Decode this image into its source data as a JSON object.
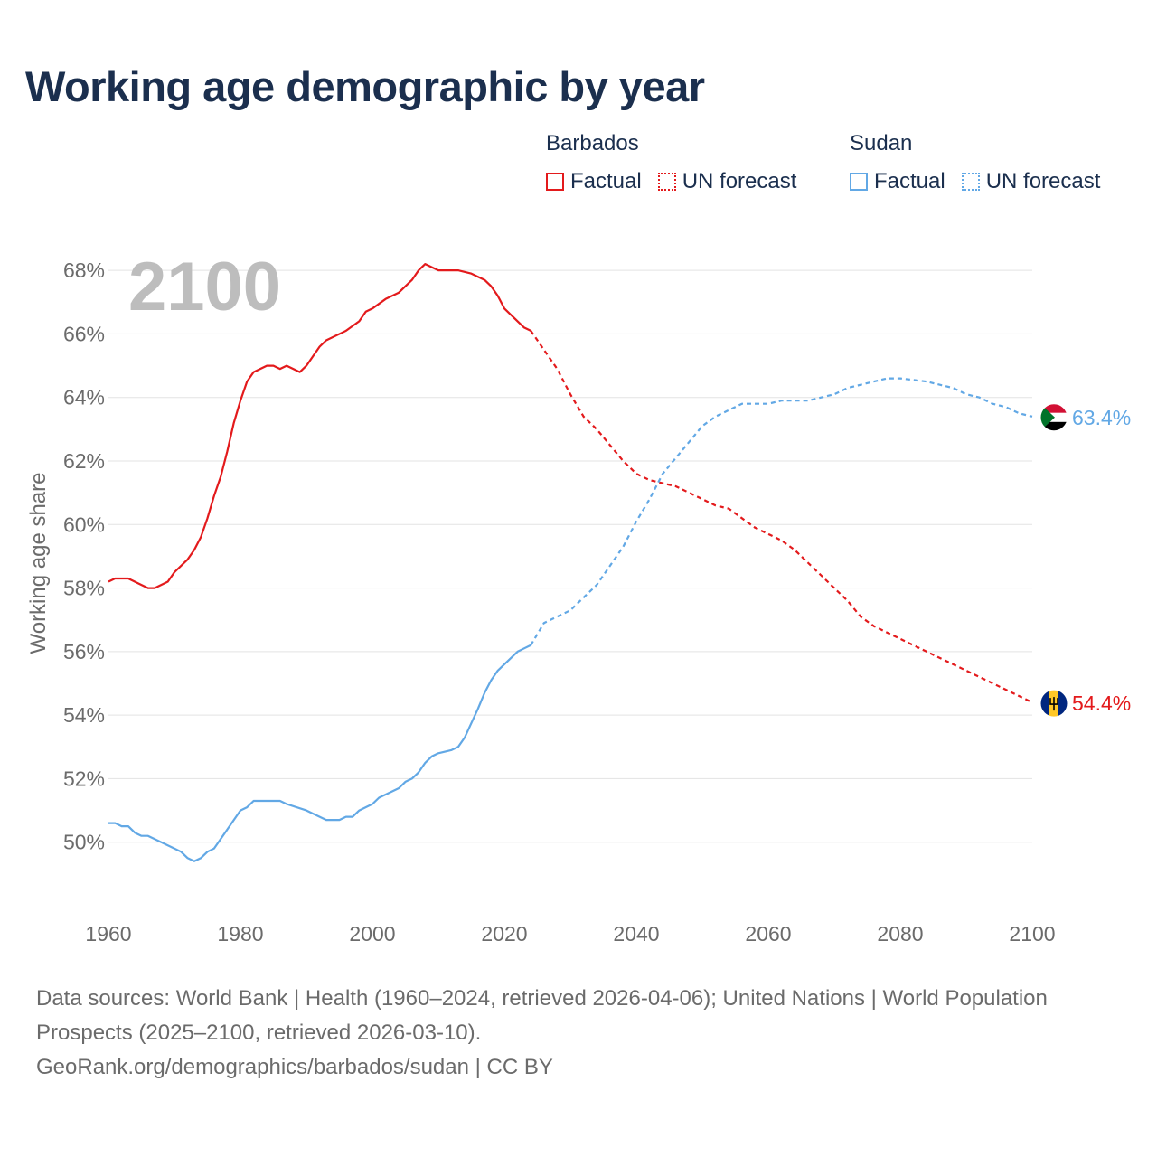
{
  "title": "Working age demographic by year",
  "legend": {
    "groups": [
      {
        "name": "Barbados",
        "factual": "Factual",
        "forecast": "UN forecast",
        "color": "#e31a1c"
      },
      {
        "name": "Sudan",
        "factual": "Factual",
        "forecast": "UN forecast",
        "color": "#62a8e5"
      }
    ]
  },
  "year_label": "2100",
  "source": {
    "line1": "Data sources: World Bank | Health (1960–2024, retrieved 2026-04-06); United Nations | World Population Prospects (2025–2100, retrieved 2026-03-10).",
    "line2": "GeoRank.org/demographics/barbados/sudan | CC BY"
  },
  "chart_data": {
    "type": "line",
    "title": "Working age demographic by year",
    "xlabel": "",
    "ylabel": "Working age share",
    "xlim": [
      1960,
      2100
    ],
    "ylim": [
      48,
      69
    ],
    "x_ticks": [
      1960,
      1980,
      2000,
      2020,
      2040,
      2060,
      2080,
      2100
    ],
    "x_tick_labels": [
      "1960",
      "1980",
      "2000",
      "2020",
      "2040",
      "2060",
      "2080",
      "2100"
    ],
    "y_ticks": [
      50,
      52,
      54,
      56,
      58,
      60,
      62,
      64,
      66,
      68
    ],
    "y_tick_labels": [
      "50%",
      "52%",
      "54%",
      "56%",
      "58%",
      "60%",
      "62%",
      "64%",
      "66%",
      "68%"
    ],
    "grid": true,
    "series": [
      {
        "name": "Barbados",
        "color": "#e31a1c",
        "end_label": "54.4%",
        "flag": "barbados-flag",
        "factual": {
          "x": [
            1960,
            1961,
            1963,
            1965,
            1966,
            1967,
            1969,
            1970,
            1972,
            1973,
            1974,
            1975,
            1976,
            1977,
            1978,
            1979,
            1980,
            1981,
            1982,
            1984,
            1985,
            1986,
            1987,
            1989,
            1990,
            1992,
            1993,
            1996,
            1998,
            1999,
            2000,
            2002,
            2004,
            2005,
            2006,
            2007,
            2008,
            2010,
            2013,
            2015,
            2016,
            2017,
            2018,
            2019,
            2020,
            2022,
            2023,
            2024
          ],
          "y": [
            58.2,
            58.3,
            58.3,
            58.1,
            58.0,
            58.0,
            58.2,
            58.5,
            58.9,
            59.2,
            59.6,
            60.2,
            60.9,
            61.5,
            62.3,
            63.2,
            63.9,
            64.5,
            64.8,
            65.0,
            65.0,
            64.9,
            65.0,
            64.8,
            65.0,
            65.6,
            65.8,
            66.1,
            66.4,
            66.7,
            66.8,
            67.1,
            67.3,
            67.5,
            67.7,
            68.0,
            68.2,
            68.0,
            68.0,
            67.9,
            67.8,
            67.7,
            67.5,
            67.2,
            66.8,
            66.4,
            66.2,
            66.1
          ]
        },
        "forecast": {
          "x": [
            2024,
            2026,
            2028,
            2030,
            2032,
            2034,
            2036,
            2038,
            2040,
            2042,
            2044,
            2046,
            2048,
            2050,
            2052,
            2054,
            2056,
            2058,
            2060,
            2062,
            2064,
            2066,
            2068,
            2070,
            2072,
            2074,
            2076,
            2080,
            2084,
            2088,
            2092,
            2096,
            2100
          ],
          "y": [
            66.1,
            65.5,
            64.9,
            64.1,
            63.4,
            63.0,
            62.5,
            62.0,
            61.6,
            61.4,
            61.3,
            61.2,
            61.0,
            60.8,
            60.6,
            60.5,
            60.2,
            59.9,
            59.7,
            59.5,
            59.2,
            58.8,
            58.4,
            58.0,
            57.6,
            57.1,
            56.8,
            56.4,
            56.0,
            55.6,
            55.2,
            54.8,
            54.4
          ]
        }
      },
      {
        "name": "Sudan",
        "color": "#62a8e5",
        "end_label": "63.4%",
        "flag": "sudan-flag",
        "factual": {
          "x": [
            1960,
            1961,
            1962,
            1963,
            1964,
            1965,
            1966,
            1967,
            1968,
            1970,
            1971,
            1972,
            1973,
            1974,
            1975,
            1976,
            1977,
            1978,
            1980,
            1981,
            1982,
            1984,
            1986,
            1987,
            1990,
            1992,
            1993,
            1994,
            1995,
            1996,
            1997,
            1998,
            2000,
            2001,
            2002,
            2003,
            2004,
            2005,
            2006,
            2007,
            2008,
            2009,
            2010,
            2012,
            2013,
            2014,
            2016,
            2017,
            2018,
            2019,
            2020,
            2022,
            2023,
            2024
          ],
          "y": [
            50.6,
            50.6,
            50.5,
            50.5,
            50.3,
            50.2,
            50.2,
            50.1,
            50.0,
            49.8,
            49.7,
            49.5,
            49.4,
            49.5,
            49.7,
            49.8,
            50.1,
            50.4,
            51.0,
            51.1,
            51.3,
            51.3,
            51.3,
            51.2,
            51.0,
            50.8,
            50.7,
            50.7,
            50.7,
            50.8,
            50.8,
            51.0,
            51.2,
            51.4,
            51.5,
            51.6,
            51.7,
            51.9,
            52.0,
            52.2,
            52.5,
            52.7,
            52.8,
            52.9,
            53.0,
            53.3,
            54.2,
            54.7,
            55.1,
            55.4,
            55.6,
            56.0,
            56.1,
            56.2
          ]
        },
        "forecast": {
          "x": [
            2024,
            2026,
            2028,
            2030,
            2032,
            2034,
            2036,
            2038,
            2040,
            2042,
            2044,
            2046,
            2048,
            2050,
            2052,
            2054,
            2056,
            2060,
            2062,
            2066,
            2068,
            2070,
            2072,
            2074,
            2076,
            2078,
            2080,
            2084,
            2086,
            2088,
            2090,
            2092,
            2094,
            2096,
            2098,
            2100
          ],
          "y": [
            56.2,
            56.9,
            57.1,
            57.3,
            57.7,
            58.1,
            58.7,
            59.3,
            60.1,
            60.8,
            61.6,
            62.1,
            62.6,
            63.1,
            63.4,
            63.6,
            63.8,
            63.8,
            63.9,
            63.9,
            64.0,
            64.1,
            64.3,
            64.4,
            64.5,
            64.6,
            64.6,
            64.5,
            64.4,
            64.3,
            64.1,
            64.0,
            63.8,
            63.7,
            63.5,
            63.4
          ]
        }
      }
    ]
  }
}
